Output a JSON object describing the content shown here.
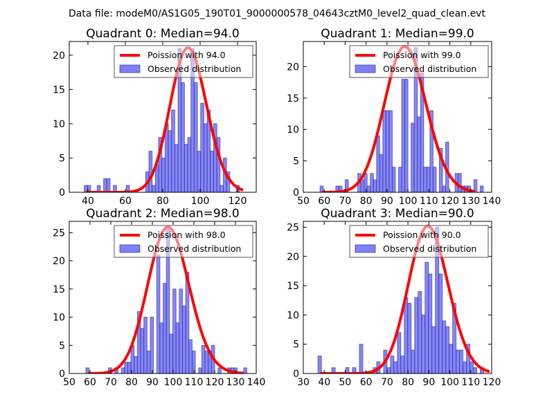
{
  "figure": {
    "suptitle": "Data file: modeM0/AS1G05_190T01_9000000578_04643cztM0_level2_quad_clean.evt"
  },
  "colors": {
    "bar_fill": "#7f7fff",
    "bar_edge": "#1a1a6e",
    "poisson_line": "#ff0000",
    "axes": "#000000"
  },
  "chart_data": [
    {
      "type": "bar",
      "title": "Quadrant 0: Median=94.0",
      "xlabel": "",
      "ylabel": "",
      "xlim": [
        30,
        130
      ],
      "ylim": [
        0,
        22
      ],
      "xticks": [
        40,
        60,
        80,
        100,
        120
      ],
      "yticks": [
        0,
        5,
        10,
        15,
        20
      ],
      "grid": false,
      "legend": {
        "placement": "top-right",
        "entries": [
          "Poission with 94.0",
          "Observed distribution"
        ]
      },
      "histogram": {
        "name": "Observed distribution",
        "bin_start": 38.0,
        "bin_width": 1.73,
        "counts": [
          1,
          1,
          0,
          0,
          1,
          0,
          2,
          2,
          0,
          1,
          0,
          0,
          0,
          1,
          0,
          0,
          0,
          0,
          0,
          3,
          6,
          1,
          4,
          8,
          5,
          10,
          9,
          12,
          7,
          21,
          16,
          7,
          8,
          21,
          16,
          6,
          13,
          10,
          12,
          6,
          10,
          8,
          1,
          5,
          3,
          0,
          0,
          1
        ]
      },
      "poisson_curve": {
        "name": "Poission with 94.0",
        "mean": 94.0,
        "peak": 21.1,
        "x_range": [
          39,
          123
        ]
      }
    },
    {
      "type": "bar",
      "title": "Quadrant 1: Median=99.0",
      "xlabel": "",
      "ylabel": "",
      "xlim": [
        50,
        140
      ],
      "ylim": [
        0,
        24
      ],
      "xticks": [
        50,
        60,
        70,
        80,
        90,
        100,
        110,
        120,
        130,
        140
      ],
      "xtick_labels": [
        "50",
        "60",
        "70",
        "80",
        "90",
        "100",
        "110",
        "120",
        "130",
        "140"
      ],
      "yticks": [
        0,
        5,
        10,
        15,
        20
      ],
      "grid": false,
      "legend": {
        "placement": "top-right",
        "entries": [
          "Poission with 99.0",
          "Observed distribution"
        ]
      },
      "histogram": {
        "name": "Observed distribution",
        "bin_start": 58.0,
        "bin_width": 1.5,
        "counts": [
          1,
          0,
          0,
          0,
          0,
          1,
          1,
          0,
          2,
          0,
          0,
          0,
          3,
          2,
          3,
          1,
          3,
          2,
          9,
          6,
          13,
          13,
          13,
          4,
          0,
          4,
          18,
          18,
          0,
          11,
          23,
          12,
          19,
          4,
          4,
          13,
          4,
          0,
          7,
          1,
          8,
          0,
          0,
          3,
          3,
          1,
          1,
          1,
          0,
          2,
          0,
          1
        ]
      },
      "poisson_curve": {
        "name": "Poission with 99.0",
        "mean": 99.0,
        "peak": 23.2,
        "x_range": [
          59,
          132
        ]
      }
    },
    {
      "type": "bar",
      "title": "Quadrant 2: Median=98.0",
      "xlabel": "",
      "ylabel": "",
      "xlim": [
        50,
        140
      ],
      "ylim": [
        0,
        27
      ],
      "xticks": [
        50,
        60,
        70,
        80,
        90,
        100,
        110,
        120,
        130,
        140
      ],
      "xtick_labels": [
        "50",
        "60",
        "70",
        "80",
        "90",
        "100",
        "110",
        "120",
        "130",
        "140"
      ],
      "yticks": [
        0,
        5,
        10,
        15,
        20,
        25
      ],
      "grid": false,
      "legend": {
        "placement": "top-right",
        "entries": [
          "Poission with 98.0",
          "Observed distribution"
        ]
      },
      "histogram": {
        "name": "Observed distribution",
        "bin_start": 58.0,
        "bin_width": 1.55,
        "counts": [
          1,
          0,
          0,
          0,
          0,
          0,
          0,
          1,
          0,
          1,
          0,
          1,
          2,
          2,
          5,
          3,
          11,
          8,
          10,
          4,
          10,
          0,
          21,
          9,
          16,
          26,
          7,
          15,
          9,
          15,
          12,
          18,
          6,
          4,
          0,
          1,
          5,
          4,
          4,
          5,
          0,
          1,
          0,
          0,
          1,
          1,
          1,
          0,
          0,
          1
        ]
      },
      "poisson_curve": {
        "name": "Poission with 98.0",
        "mean": 98.0,
        "peak": 26.0,
        "x_range": [
          59,
          134
        ]
      }
    },
    {
      "type": "bar",
      "title": "Quadrant 3: Median=90.0",
      "xlabel": "",
      "ylabel": "",
      "xlim": [
        30,
        120
      ],
      "ylim": [
        0,
        26
      ],
      "xticks": [
        30,
        40,
        50,
        60,
        70,
        80,
        90,
        100,
        110,
        120
      ],
      "xtick_labels": [
        "30",
        "40",
        "50",
        "60",
        "70",
        "80",
        "90",
        "100",
        "110",
        "120"
      ],
      "yticks": [
        0,
        5,
        10,
        15,
        20,
        25
      ],
      "grid": false,
      "legend": {
        "placement": "top-right",
        "entries": [
          "Poission with 90.0",
          "Observed distribution"
        ]
      },
      "histogram": {
        "name": "Observed distribution",
        "bin_start": 37.0,
        "bin_width": 1.65,
        "counts": [
          3,
          0,
          0,
          0,
          1,
          0,
          0,
          0,
          1,
          0,
          1,
          0,
          5,
          0,
          0,
          0,
          1,
          2,
          0,
          4,
          1,
          3,
          2,
          7,
          3,
          13,
          12,
          4,
          13,
          14,
          10,
          19,
          17,
          8,
          25,
          17,
          9,
          8,
          5,
          12,
          4,
          4,
          2,
          5,
          2,
          1,
          0,
          1
        ]
      },
      "poisson_curve": {
        "name": "Poission with 90.0",
        "mean": 90.0,
        "peak": 25.2,
        "x_range": [
          38,
          119
        ]
      }
    }
  ]
}
